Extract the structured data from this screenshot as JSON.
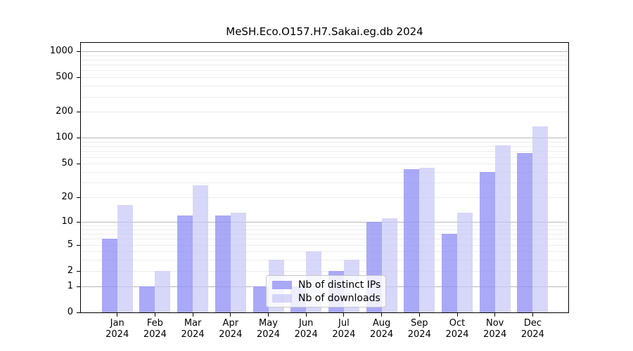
{
  "chart_data": {
    "type": "bar",
    "title": "MeSH.Eco.O157.H7.Sakai.eg.db 2024",
    "year": "2024",
    "categories": [
      "Jan",
      "Feb",
      "Mar",
      "Apr",
      "May",
      "Jun",
      "Jul",
      "Aug",
      "Sep",
      "Oct",
      "Nov",
      "Dec"
    ],
    "series": [
      {
        "name": "Nb of distinct IPs",
        "color": "#a9a9f7",
        "fill": "rgba(148,148,245,0.8)",
        "values": [
          6,
          1,
          12,
          12,
          1,
          1,
          2,
          10,
          43,
          7,
          40,
          67
        ]
      },
      {
        "name": "Nb of downloads",
        "color": "#d7d7f9",
        "fill": "rgba(200,200,247,0.72)",
        "values": [
          16,
          2,
          28,
          13,
          3,
          4,
          3,
          11,
          45,
          13,
          82,
          135
        ]
      }
    ],
    "y_axis": {
      "scale": "log(value+1)",
      "ticks": [
        0,
        1,
        2,
        5,
        10,
        20,
        50,
        100,
        200,
        500,
        1000
      ],
      "major_gridlines": [
        1,
        10,
        100,
        1000
      ],
      "minor_gridlines": [
        2,
        3,
        4,
        5,
        6,
        7,
        8,
        9,
        20,
        30,
        40,
        50,
        60,
        70,
        80,
        90,
        200,
        300,
        400,
        500,
        600,
        700,
        800,
        900
      ],
      "ylim": [
        0,
        1200
      ]
    },
    "legend": {
      "position": "inside-bottom",
      "items": [
        "Nb of distinct IPs",
        "Nb of downloads"
      ]
    },
    "grid": "on"
  },
  "style": {
    "major_grid_color": "#b8b8b8",
    "minor_grid_color": "#ececec",
    "axis_color": "#000000",
    "legend_border_color": "#c8c8c8"
  }
}
